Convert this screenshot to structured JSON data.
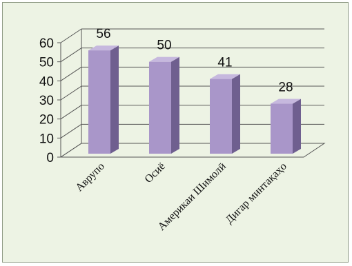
{
  "chart_data": {
    "type": "bar",
    "categories": [
      "Аврупо",
      "Осиё",
      "Америкаи Шимолӣ",
      "Дигар минтақаҳо"
    ],
    "values": [
      56,
      50,
      41,
      28
    ],
    "ylim": [
      0,
      60
    ],
    "yticks": [
      0,
      10,
      20,
      30,
      40,
      50,
      60
    ],
    "grid": true,
    "style": "3d-column",
    "colors": {
      "bar_front": "#a996c9",
      "bar_side": "#6f5f8f",
      "bar_top": "#c6b8de",
      "grid": "#555555",
      "background": "#edf3e4"
    }
  }
}
